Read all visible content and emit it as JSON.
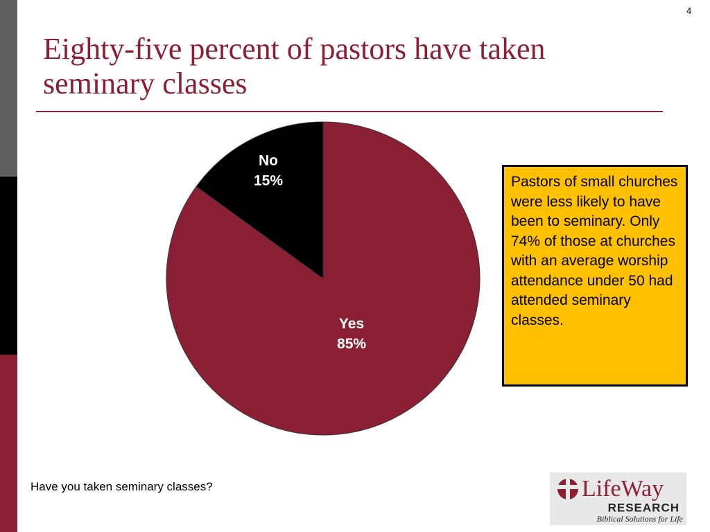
{
  "page_number": "4",
  "chart_data": {
    "type": "pie",
    "title": "Eighty-five percent of pastors have taken seminary classes",
    "categories": [
      "Yes",
      "No"
    ],
    "values": [
      85,
      15
    ],
    "value_labels": [
      "85%",
      "15%"
    ],
    "colors": [
      "#8b2035",
      "#000000"
    ]
  },
  "callout": "Pastors of small churches were less likely to have been to seminary. Only 74% of those at churches with an average worship  attendance under 50 had attended seminary classes.",
  "question": "Have you taken seminary classes?",
  "logo": {
    "name": "LifeWay",
    "sub": "RESEARCH",
    "tagline": "Biblical Solutions for Life"
  }
}
